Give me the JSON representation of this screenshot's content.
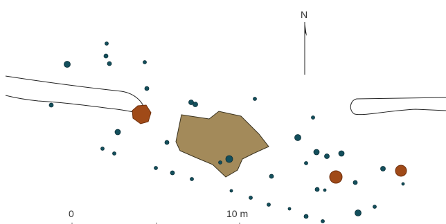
{
  "map": {
    "north_label": "N",
    "scale": {
      "start_label": "0",
      "end_label": "10 m"
    },
    "colors": {
      "posthole": "#134f5c",
      "posthole_outline": "#0c2f38",
      "large_pit": "#a04a18",
      "large_pit_outline": "#6e2f0c",
      "central_feature": "#a38a5a",
      "central_feature_outline": "#3a3320",
      "line": "#222222"
    },
    "features": {
      "postholes_count_shown": 44,
      "large_pits_count_shown": 3,
      "central_feature_count_shown": 1,
      "trench_count_shown": 2
    }
  }
}
